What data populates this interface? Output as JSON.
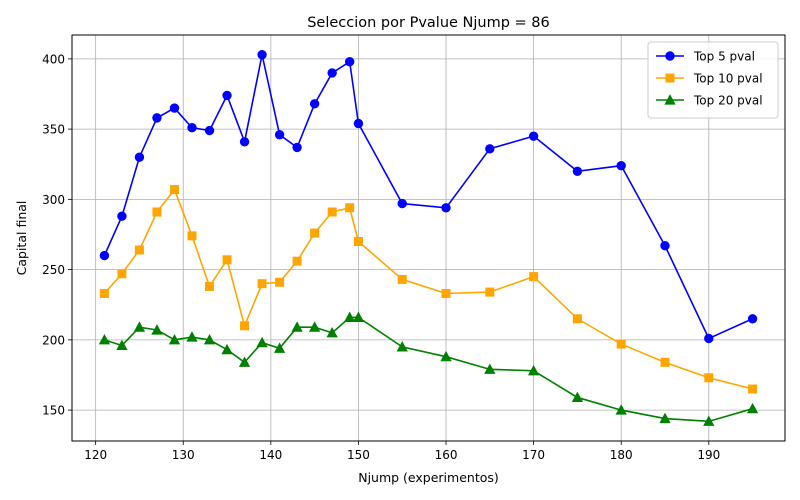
{
  "chart_data": {
    "type": "line",
    "title": "Seleccion por Pvalue Njump = 86",
    "xlabel": "Njump (experimentos)",
    "ylabel": "Capital final",
    "xlim": [
      117.3,
      198.7
    ],
    "ylim": [
      128,
      417
    ],
    "xticks": [
      120,
      130,
      140,
      150,
      160,
      170,
      180,
      190
    ],
    "yticks": [
      150,
      200,
      250,
      300,
      350,
      400
    ],
    "grid": true,
    "legend_position": "top-right",
    "x": [
      121,
      123,
      125,
      127,
      129,
      131,
      133,
      135,
      137,
      139,
      141,
      143,
      145,
      147,
      149,
      150,
      155,
      160,
      165,
      170,
      175,
      180,
      185,
      190,
      195
    ],
    "series": [
      {
        "name": "Top 5 pval",
        "color": "#0000ff",
        "marker": "circle",
        "values": [
          260,
          288,
          330,
          358,
          365,
          351,
          349,
          374,
          341,
          403,
          346,
          337,
          368,
          390,
          398,
          354,
          297,
          294,
          336,
          345,
          320,
          324,
          267,
          201,
          215
        ]
      },
      {
        "name": "Top 10 pval",
        "color": "#ffa500",
        "marker": "square",
        "values": [
          233,
          247,
          264,
          291,
          307,
          274,
          238,
          257,
          210,
          240,
          241,
          256,
          276,
          291,
          294,
          270,
          243,
          233,
          234,
          245,
          215,
          197,
          184,
          173,
          165
        ]
      },
      {
        "name": "Top 20 pval",
        "color": "#008000",
        "marker": "triangle",
        "values": [
          200,
          196,
          209,
          207,
          200,
          202,
          200,
          193,
          184,
          198,
          194,
          209,
          209,
          205,
          216,
          216,
          195,
          188,
          179,
          178,
          159,
          150,
          144,
          142,
          151
        ]
      }
    ]
  }
}
